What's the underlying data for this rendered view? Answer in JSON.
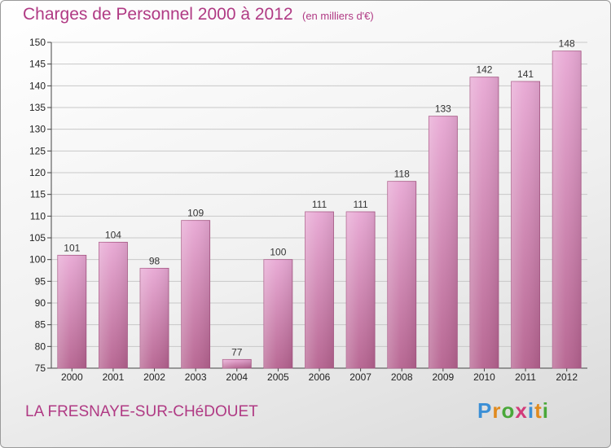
{
  "header": {
    "title": "Charges de Personnel 2000 à 2012",
    "subtitle": "(en milliers d'€)"
  },
  "footer": {
    "commune": "LA FRESNAYE-SUR-CHéDOUET",
    "logo_letters": [
      "P",
      "r",
      "o",
      "x",
      "i",
      "t",
      "i"
    ],
    "logo_colors": [
      "#3b8fd6",
      "#e08a1e",
      "#4aa83a",
      "#d23b7a",
      "#3b8fd6",
      "#e08a1e",
      "#4aa83a"
    ]
  },
  "colors": {
    "bar_top": "#e8a8d4",
    "bar_bottom": "#b5628f",
    "grid": "#c8c8c8",
    "accent": "#b03a84"
  },
  "chart_data": {
    "type": "bar",
    "title": "Charges de Personnel 2000 à 2012",
    "subtitle": "(en milliers d'€)",
    "categories": [
      "2000",
      "2001",
      "2002",
      "2003",
      "2004",
      "2005",
      "2006",
      "2007",
      "2008",
      "2009",
      "2010",
      "2011",
      "2012"
    ],
    "values": [
      101,
      104,
      98,
      109,
      77,
      100,
      111,
      111,
      118,
      133,
      142,
      141,
      148
    ],
    "ylim": [
      75,
      150
    ],
    "yticks": [
      75,
      80,
      85,
      90,
      95,
      100,
      105,
      110,
      115,
      120,
      125,
      130,
      135,
      140,
      145,
      150
    ],
    "grid": true,
    "legend": "none"
  }
}
